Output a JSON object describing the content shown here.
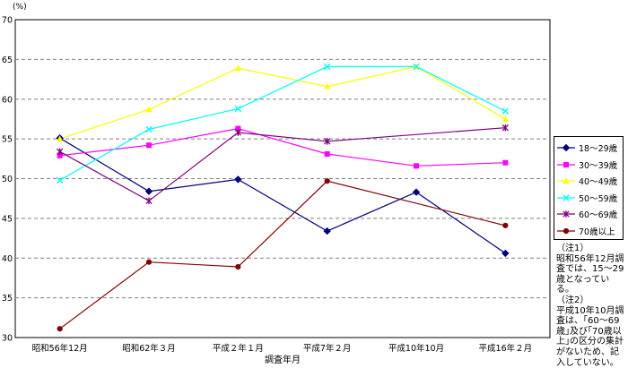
{
  "chart_data": {
    "type": "line",
    "unit_label": "(%)",
    "xlabel": "調査年月",
    "categories": [
      "昭和56年12月",
      "昭和62年３月",
      "平成２年１月",
      "平成7年２月",
      "平成10年10月",
      "平成16年２月"
    ],
    "ylim": [
      30,
      70
    ],
    "yticks": [
      "30",
      "35",
      "40",
      "45",
      "50",
      "55",
      "60",
      "65",
      "70"
    ],
    "grid": "horizontal dashed",
    "legend_position": "right",
    "series": [
      {
        "name": "18～29歳",
        "color": "#000080",
        "marker": "diamond",
        "values": [
          55.1,
          48.4,
          49.9,
          43.4,
          48.3,
          40.6
        ]
      },
      {
        "name": "30～39歳",
        "color": "#ff00ff",
        "marker": "square",
        "values": [
          52.9,
          54.2,
          56.3,
          53.1,
          51.6,
          52.0
        ]
      },
      {
        "name": "40～49歳",
        "color": "#ffff00",
        "marker": "triangle",
        "values": [
          55.0,
          58.7,
          63.9,
          61.6,
          64.1,
          57.5
        ]
      },
      {
        "name": "50～59歳",
        "color": "#00ffff",
        "marker": "x",
        "values": [
          49.8,
          56.2,
          58.8,
          64.1,
          64.1,
          58.5
        ]
      },
      {
        "name": "60～69歳",
        "color": "#800080",
        "marker": "star",
        "values": [
          53.4,
          47.2,
          55.8,
          54.7,
          null,
          56.4
        ]
      },
      {
        "name": "70歳以上",
        "color": "#800000",
        "marker": "circle",
        "values": [
          31.1,
          39.5,
          38.9,
          49.7,
          null,
          44.1
        ]
      }
    ]
  },
  "notes": [
    "（注1）\n昭和56年12月調査では、15～29歳となっている。",
    "（注2）\n平成10年10月調査は、｢60～69歳｣及び｢70歳以上｣の区分の集計がないため、記入していない。"
  ]
}
